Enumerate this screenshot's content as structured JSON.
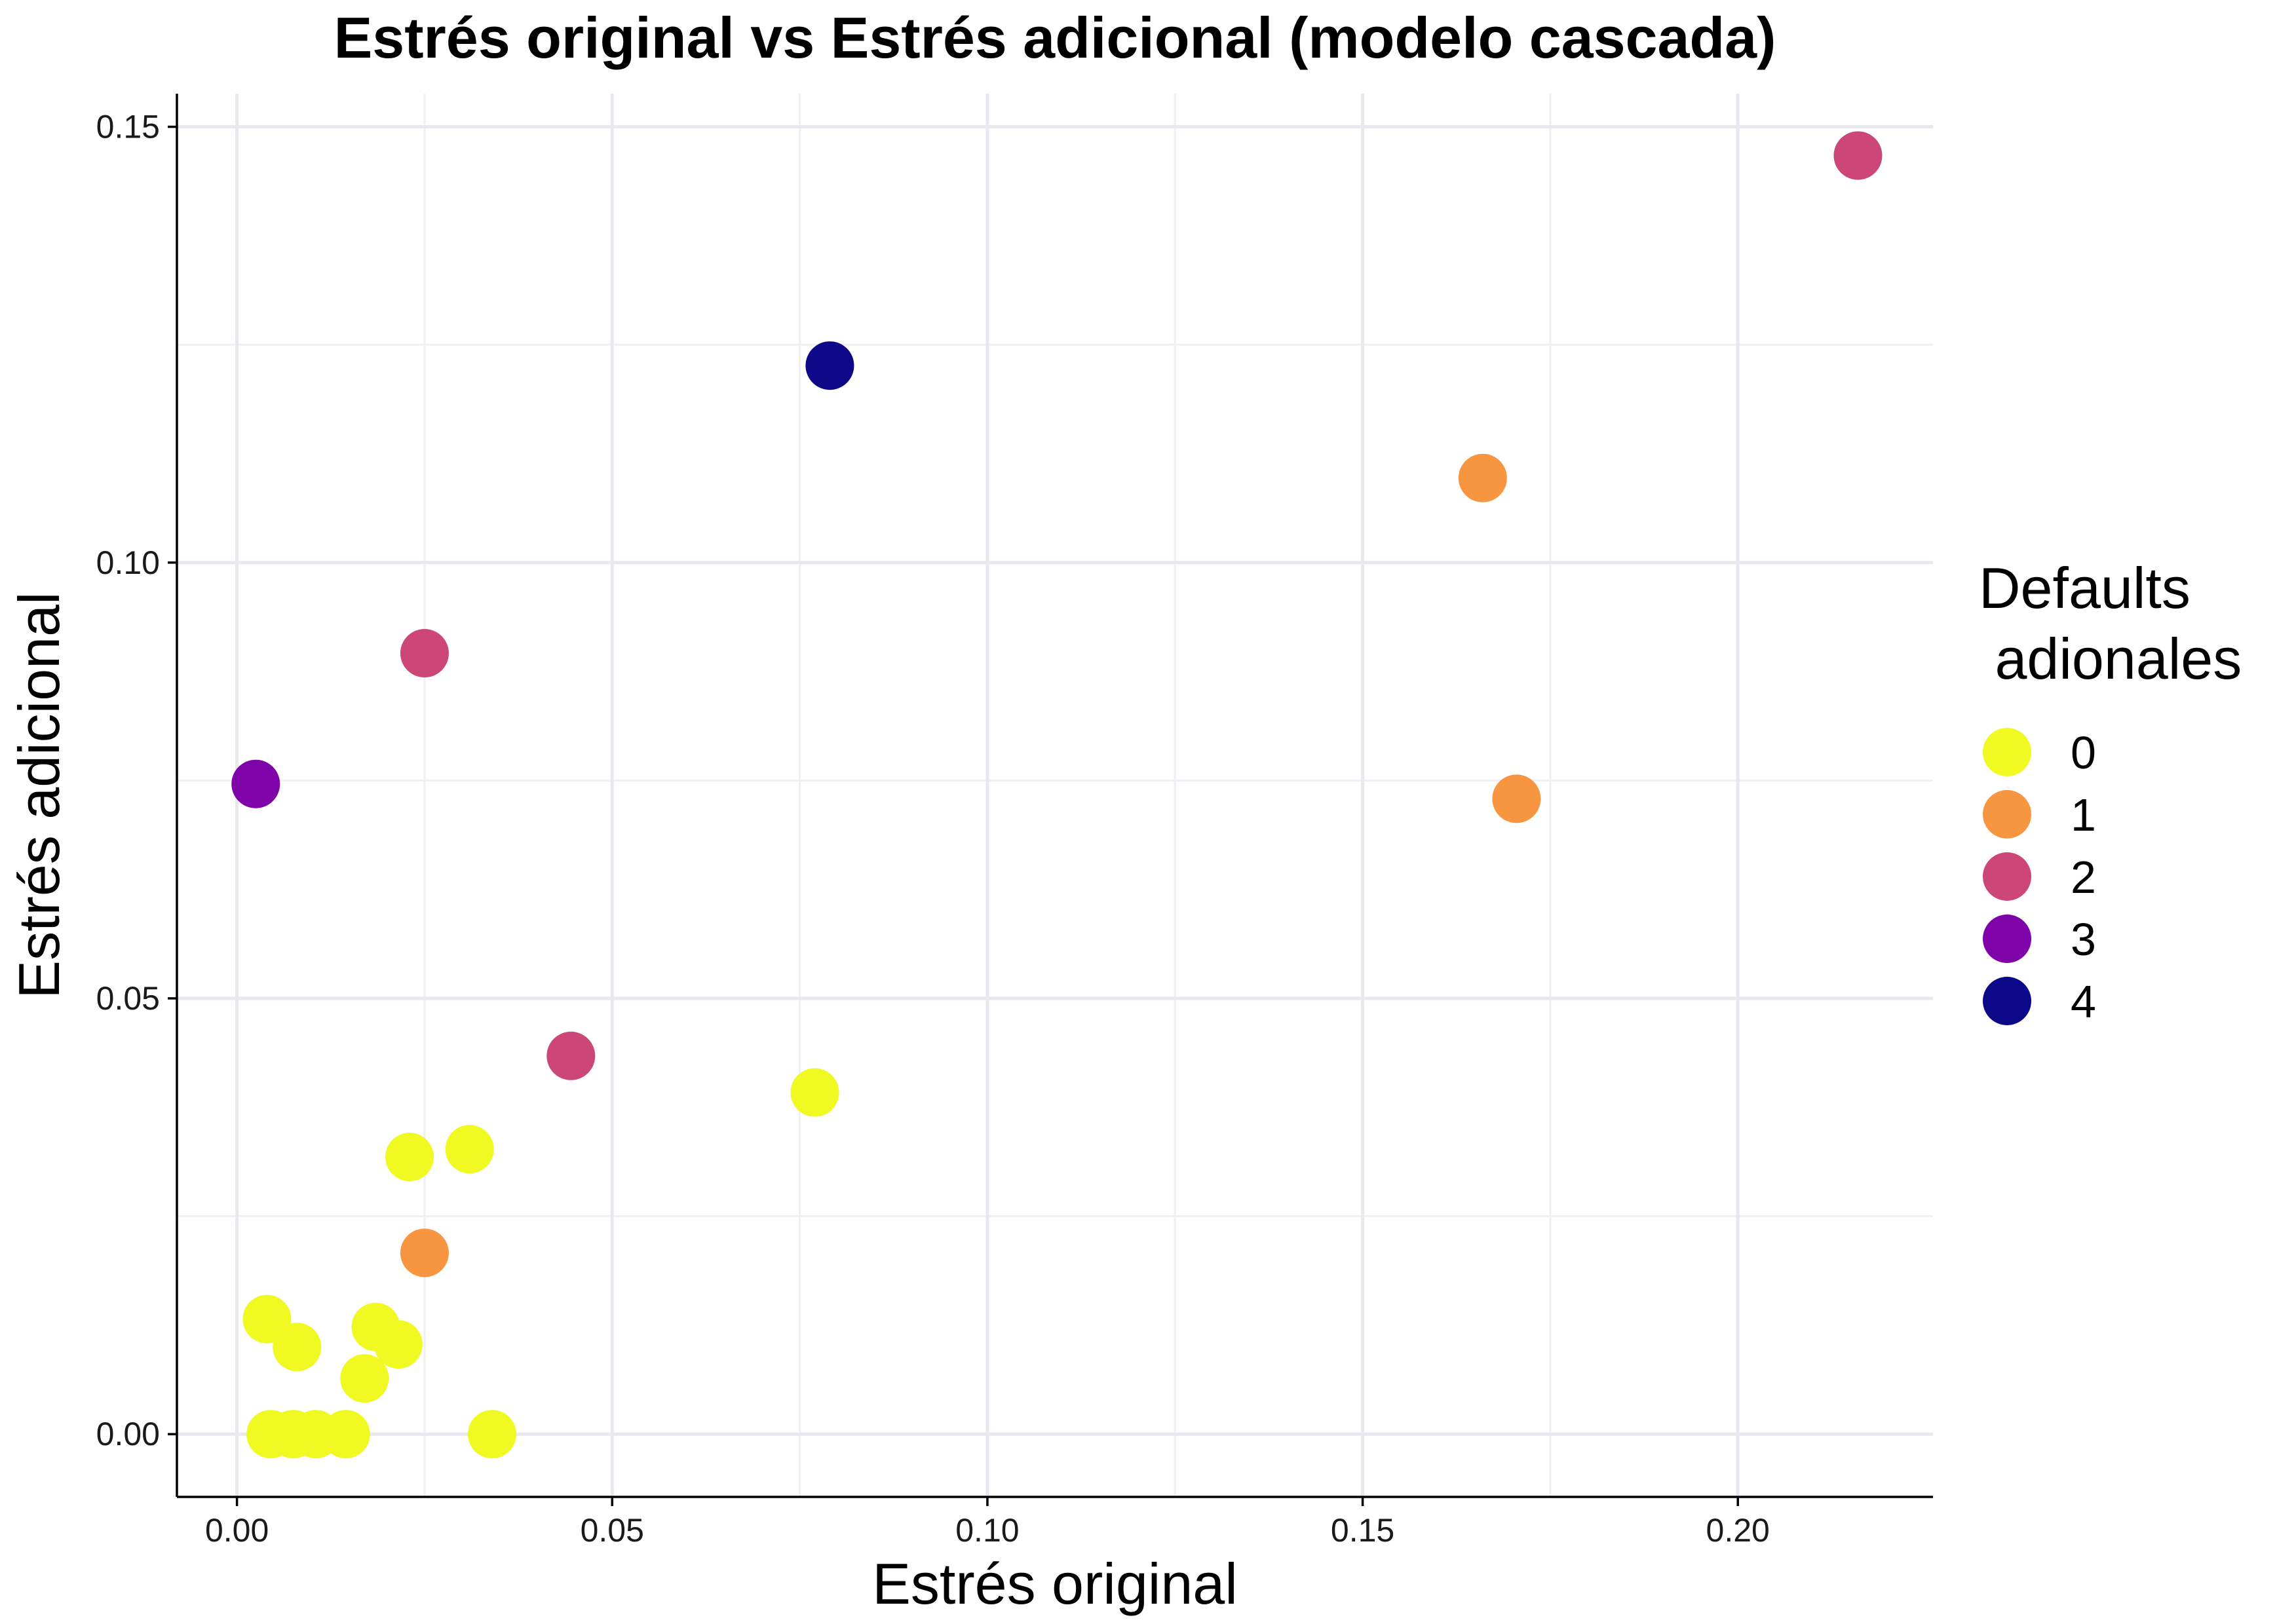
{
  "chart_data": {
    "type": "scatter",
    "title": "Estrés original vs Estrés adicional (modelo cascada)",
    "xlabel": "Estrés original",
    "ylabel": "Estrés adicional",
    "xlim": [
      -0.008,
      0.226
    ],
    "ylim": [
      -0.0072,
      0.1538
    ],
    "x_ticks": [
      0.0,
      0.05,
      0.1,
      0.15,
      0.2
    ],
    "x_tick_labels": [
      "0.00",
      "0.05",
      "0.10",
      "0.15",
      "0.20"
    ],
    "y_ticks": [
      0.0,
      0.05,
      0.1,
      0.15
    ],
    "y_tick_labels": [
      "0.00",
      "0.05",
      "0.10",
      "0.15"
    ],
    "grid": true,
    "legend": {
      "title_lines": [
        "Defaults",
        " adionales"
      ],
      "placement": "right",
      "entries": [
        {
          "label": "0",
          "color": "#F0F921"
        },
        {
          "label": "1",
          "color": "#F89540"
        },
        {
          "label": "2",
          "color": "#CC4778"
        },
        {
          "label": "3",
          "color": "#7E03A8"
        },
        {
          "label": "4",
          "color": "#0D0887"
        }
      ]
    },
    "points": [
      {
        "x": 0.0045,
        "y": 0.0,
        "group": "0"
      },
      {
        "x": 0.0075,
        "y": 0.0,
        "group": "0"
      },
      {
        "x": 0.0105,
        "y": 0.0,
        "group": "0"
      },
      {
        "x": 0.0145,
        "y": 0.0,
        "group": "0"
      },
      {
        "x": 0.034,
        "y": 0.0,
        "group": "0"
      },
      {
        "x": 0.004,
        "y": 0.0132,
        "group": "0"
      },
      {
        "x": 0.008,
        "y": 0.01,
        "group": "0"
      },
      {
        "x": 0.0185,
        "y": 0.0123,
        "group": "0"
      },
      {
        "x": 0.0215,
        "y": 0.0103,
        "group": "0"
      },
      {
        "x": 0.017,
        "y": 0.0064,
        "group": "0"
      },
      {
        "x": 0.023,
        "y": 0.0318,
        "group": "0"
      },
      {
        "x": 0.031,
        "y": 0.0327,
        "group": "0"
      },
      {
        "x": 0.077,
        "y": 0.0392,
        "group": "0"
      },
      {
        "x": 0.025,
        "y": 0.0208,
        "group": "1"
      },
      {
        "x": 0.166,
        "y": 0.1097,
        "group": "1"
      },
      {
        "x": 0.1705,
        "y": 0.0729,
        "group": "1"
      },
      {
        "x": 0.025,
        "y": 0.0896,
        "group": "2"
      },
      {
        "x": 0.0445,
        "y": 0.0434,
        "group": "2"
      },
      {
        "x": 0.216,
        "y": 0.1467,
        "group": "2"
      },
      {
        "x": 0.0025,
        "y": 0.0746,
        "group": "3"
      },
      {
        "x": 0.079,
        "y": 0.1226,
        "group": "4"
      }
    ]
  }
}
